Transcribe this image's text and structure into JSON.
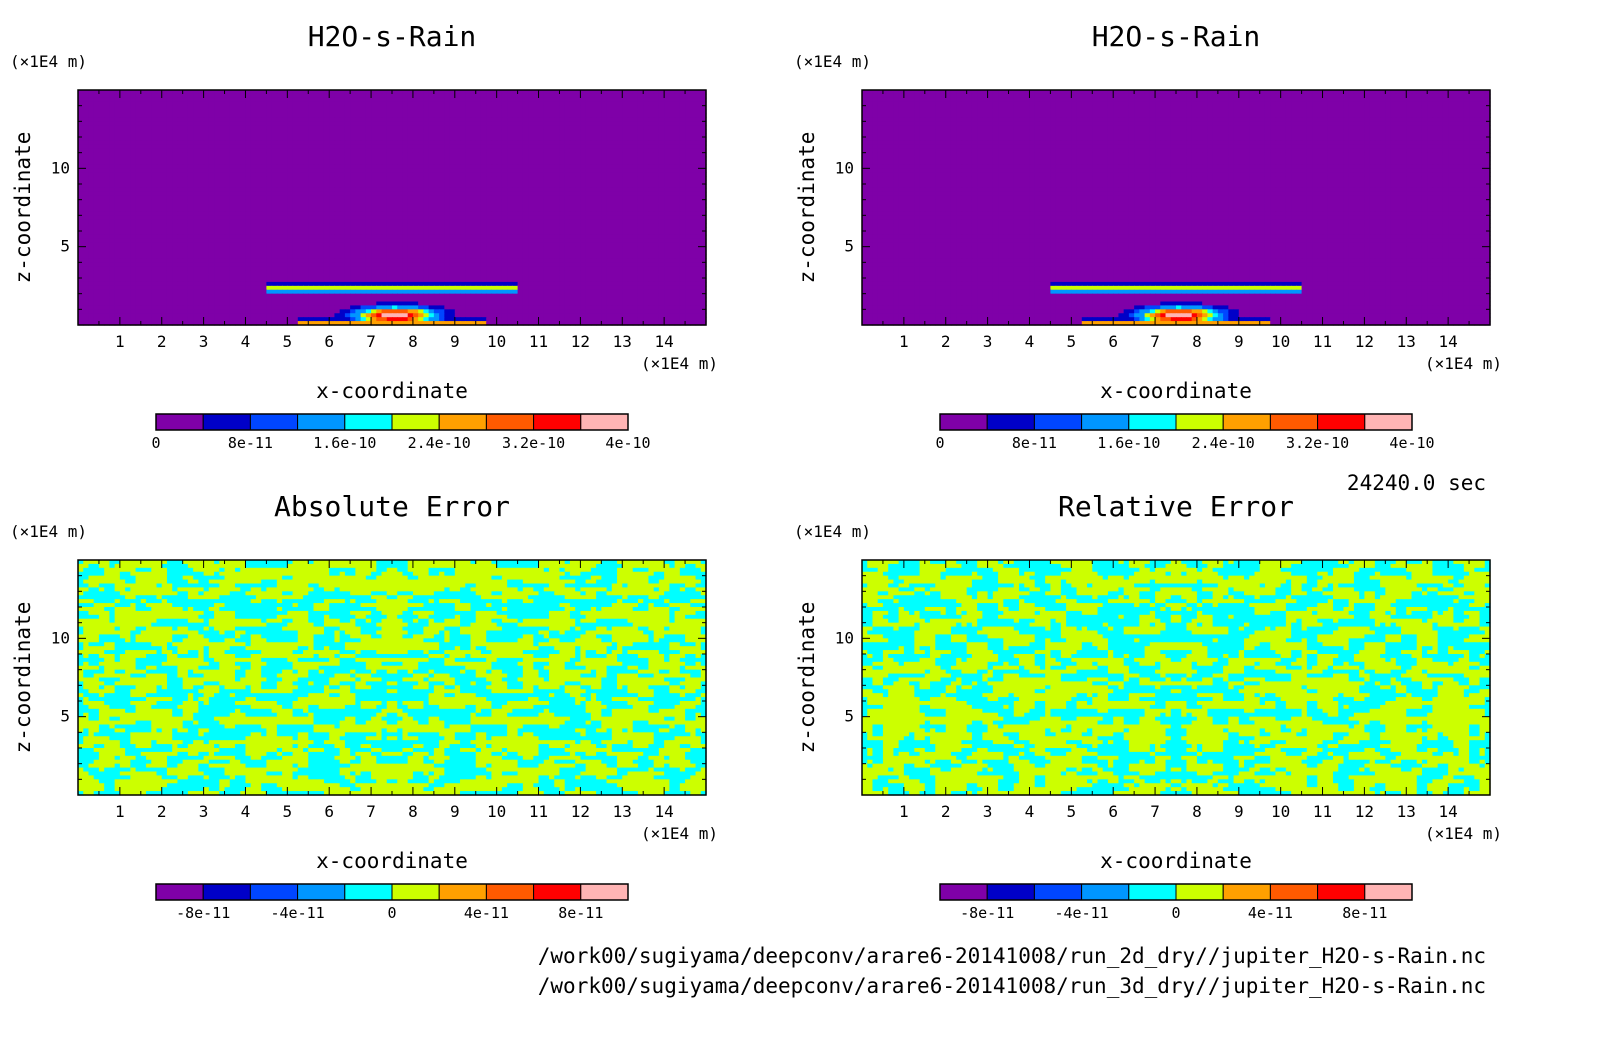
{
  "chart_data": [
    {
      "type": "heatmap",
      "title": "H2O-s-Rain",
      "xlabel": "x-coordinate",
      "ylabel": "z-coordinate",
      "x_unit": "(×1E4 m)",
      "y_unit": "(×1E4 m)",
      "xlim": [
        0,
        15
      ],
      "ylim": [
        0,
        15
      ],
      "xticks": [
        "1",
        "2",
        "3",
        "4",
        "5",
        "6",
        "7",
        "8",
        "9",
        "10",
        "11",
        "12",
        "13",
        "14"
      ],
      "yticks": [
        "5",
        "10"
      ],
      "colorbar": {
        "levels": [
          0,
          4e-11,
          8e-11,
          1.2e-10,
          1.6e-10,
          2e-10,
          2.4e-10,
          2.8e-10,
          3.2e-10,
          3.6e-10,
          4e-10
        ],
        "labels": [
          "0",
          "8e-11",
          "1.6e-10",
          "2.4e-10",
          "3.2e-10",
          "4e-10"
        ]
      },
      "features": "uniform background value 0; thin rain layer near z=2.3 spanning x=4.5-10.5; peak near x=7.6, z=0.7 reaching about 4e-10"
    },
    {
      "type": "heatmap",
      "title": "H2O-s-Rain",
      "xlabel": "x-coordinate",
      "ylabel": "z-coordinate",
      "x_unit": "(×1E4 m)",
      "y_unit": "(×1E4 m)",
      "xlim": [
        0,
        15
      ],
      "ylim": [
        0,
        15
      ],
      "xticks": [
        "1",
        "2",
        "3",
        "4",
        "5",
        "6",
        "7",
        "8",
        "9",
        "10",
        "11",
        "12",
        "13",
        "14"
      ],
      "yticks": [
        "5",
        "10"
      ],
      "colorbar": {
        "levels": [
          0,
          4e-11,
          8e-11,
          1.2e-10,
          1.6e-10,
          2e-10,
          2.4e-10,
          2.8e-10,
          3.2e-10,
          3.6e-10,
          4e-10
        ],
        "labels": [
          "0",
          "8e-11",
          "1.6e-10",
          "2.4e-10",
          "3.2e-10",
          "4e-10"
        ]
      },
      "features": "identical to left panel"
    },
    {
      "type": "heatmap",
      "title": "Absolute Error",
      "xlabel": "x-coordinate",
      "ylabel": "z-coordinate",
      "x_unit": "(×1E4 m)",
      "y_unit": "(×1E4 m)",
      "xlim": [
        0,
        15
      ],
      "ylim": [
        0,
        15
      ],
      "xticks": [
        "1",
        "2",
        "3",
        "4",
        "5",
        "6",
        "7",
        "8",
        "9",
        "10",
        "11",
        "12",
        "13",
        "14"
      ],
      "yticks": [
        "5",
        "10"
      ],
      "colorbar": {
        "levels": [
          -1e-10,
          -8e-11,
          -6e-11,
          -4e-11,
          -2e-11,
          0,
          2e-11,
          4e-11,
          6e-11,
          8e-11,
          1e-10
        ],
        "labels": [
          "-8e-11",
          "-4e-11",
          "0",
          "4e-11",
          "8e-11"
        ]
      },
      "features": "values mostly in 0 to 2e-11 bin with patches of -2e-11 to 0; symmetric about x=7.5"
    },
    {
      "type": "heatmap",
      "title": "Relative Error",
      "xlabel": "x-coordinate",
      "ylabel": "z-coordinate",
      "x_unit": "(×1E4 m)",
      "y_unit": "(×1E4 m)",
      "xlim": [
        0,
        15
      ],
      "ylim": [
        0,
        15
      ],
      "xticks": [
        "1",
        "2",
        "3",
        "4",
        "5",
        "6",
        "7",
        "8",
        "9",
        "10",
        "11",
        "12",
        "13",
        "14"
      ],
      "yticks": [
        "5",
        "10"
      ],
      "colorbar": {
        "levels": [
          -1e-10,
          -8e-11,
          -6e-11,
          -4e-11,
          -2e-11,
          0,
          2e-11,
          4e-11,
          6e-11,
          8e-11,
          1e-10
        ],
        "labels": [
          "-8e-11",
          "-4e-11",
          "0",
          "4e-11",
          "8e-11"
        ]
      },
      "features": "values mostly in 0 to 2e-11 bin with patches of -2e-11 to 0; symmetric about x=7.5"
    }
  ],
  "time_label": "24240.0 sec",
  "files": [
    "/work00/sugiyama/deepconv/arare6-20141008/run_2d_dry//jupiter_H2O-s-Rain.nc",
    "/work00/sugiyama/deepconv/arare6-20141008/run_3d_dry//jupiter_H2O-s-Rain.nc"
  ],
  "palette": [
    "#7f00a8",
    "#0000c8",
    "#0046ff",
    "#0096ff",
    "#00ffff",
    "#ccff00",
    "#ffa000",
    "#ff5a00",
    "#ff0000",
    "#ffb4b4"
  ]
}
